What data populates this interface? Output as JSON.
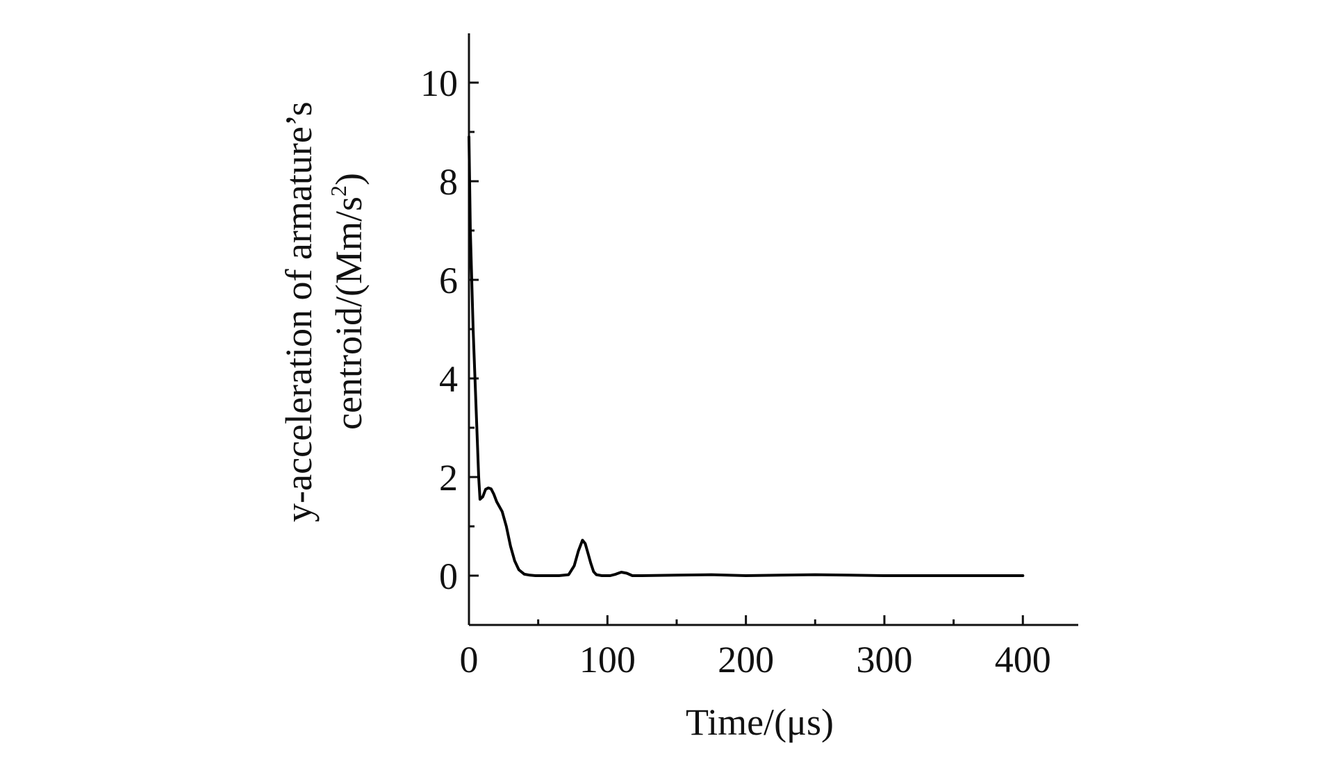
{
  "chart_data": {
    "type": "line",
    "title": "",
    "xlabel": "Time/(μs)",
    "ylabel_line1": "y-acceleration of armature’s",
    "ylabel_line2_main": "centroid/(Mm/s",
    "ylabel_line2_sup": "2",
    "ylabel_line2_end": ")",
    "xlim": [
      0,
      440
    ],
    "ylim": [
      -1,
      11
    ],
    "xticks": [
      0,
      100,
      200,
      300,
      400
    ],
    "xtick_labels": [
      "0",
      "100",
      "200",
      "300",
      "400"
    ],
    "xminor_ticks": [
      50,
      150,
      250,
      350
    ],
    "yticks": [
      0,
      2,
      4,
      6,
      8,
      10
    ],
    "ytick_labels": [
      "0",
      "2",
      "4",
      "6",
      "8",
      "10"
    ],
    "yminor_ticks": [
      1,
      3,
      5,
      7,
      9
    ],
    "grid": false,
    "series": [
      {
        "color": "#000000",
        "x": [
          0,
          1,
          3,
          5,
          7,
          8,
          10,
          12,
          14,
          16,
          18,
          20,
          24,
          27,
          30,
          33,
          36,
          40,
          44,
          48,
          55,
          65,
          72,
          76,
          79,
          82,
          84,
          86,
          88,
          90,
          92,
          96,
          102,
          106,
          110,
          114,
          118,
          125,
          150,
          175,
          200,
          225,
          250,
          275,
          300,
          325,
          350,
          375,
          400
        ],
        "y": [
          8.9,
          7.0,
          5.0,
          3.5,
          2.0,
          1.55,
          1.6,
          1.75,
          1.78,
          1.76,
          1.65,
          1.5,
          1.3,
          1.0,
          0.6,
          0.3,
          0.12,
          0.03,
          0.01,
          0.0,
          0.0,
          0.0,
          0.02,
          0.2,
          0.5,
          0.72,
          0.65,
          0.45,
          0.25,
          0.08,
          0.02,
          0.0,
          0.0,
          0.03,
          0.07,
          0.05,
          0.0,
          0.0,
          0.01,
          0.02,
          0.0,
          0.01,
          0.02,
          0.01,
          0.0,
          0.0,
          0.0,
          0.0,
          0.0
        ]
      }
    ]
  }
}
